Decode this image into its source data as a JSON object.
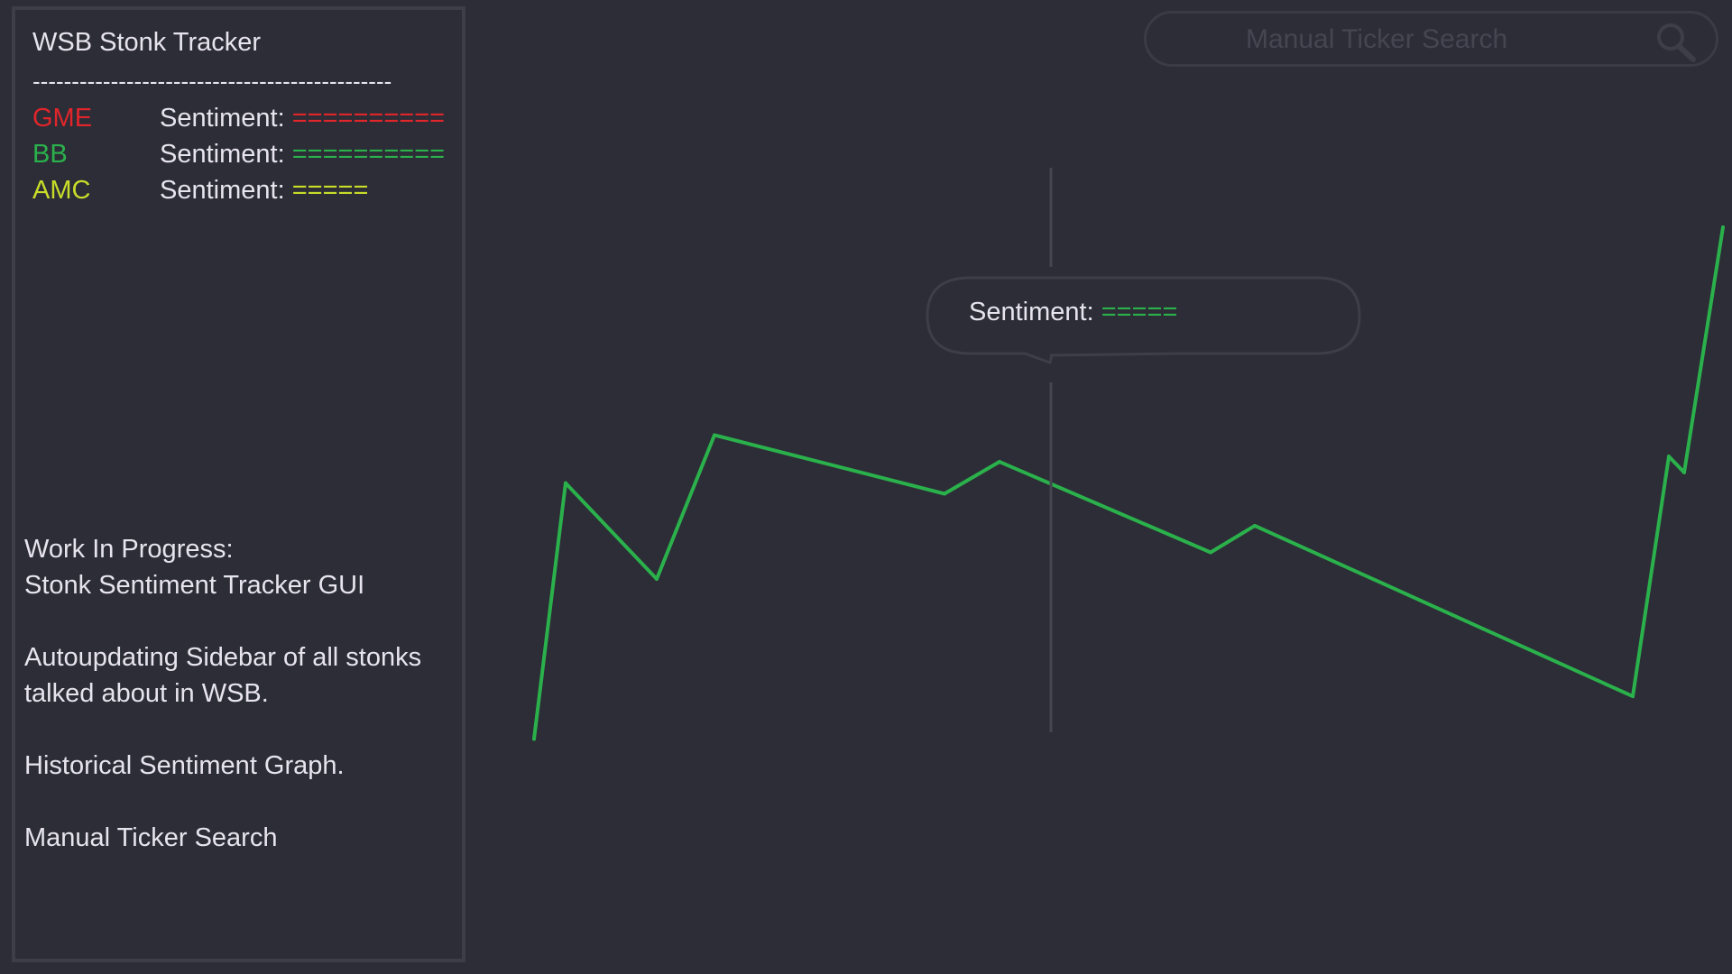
{
  "sidebar": {
    "title": "WSB Stonk Tracker",
    "divider": "----------------------------------------------",
    "tickers": [
      {
        "symbol": "GME",
        "sentiment_label": "Sentiment:",
        "sentiment_bar": "==========",
        "color": "#e0262b"
      },
      {
        "symbol": "BB",
        "sentiment_label": "Sentiment:",
        "sentiment_bar": "==========",
        "color": "#2bb14c"
      },
      {
        "symbol": "AMC",
        "sentiment_label": "Sentiment:",
        "sentiment_bar": "=====",
        "color": "#c8dc2a"
      }
    ]
  },
  "notes": {
    "wip_line1": "Work In Progress:",
    "wip_line2": "Stonk Sentiment Tracker GUI",
    "autoupdate_line1": "Autoupdating Sidebar of all stonks",
    "autoupdate_line2": "talked about in WSB.",
    "historical": "Historical Sentiment Graph.",
    "manual": "Manual Ticker Search"
  },
  "search": {
    "placeholder": "Manual Ticker Search",
    "icon": "search-icon"
  },
  "tooltip": {
    "label": "Sentiment:",
    "bar": "====="
  },
  "colors": {
    "background": "#2c2d36",
    "line": "#2bb14c",
    "cursor": "#45464f",
    "border": "#3d3e48"
  },
  "chart_data": {
    "type": "line",
    "title": "",
    "xlabel": "",
    "ylabel": "",
    "grid": false,
    "series": [
      {
        "values": [
          0.04,
          0.52,
          0.34,
          0.61,
          0.5,
          0.56,
          0.39,
          0.44,
          0.12,
          0.57,
          0.54,
          1.0
        ]
      }
    ],
    "ylim": [
      0,
      1
    ]
  }
}
